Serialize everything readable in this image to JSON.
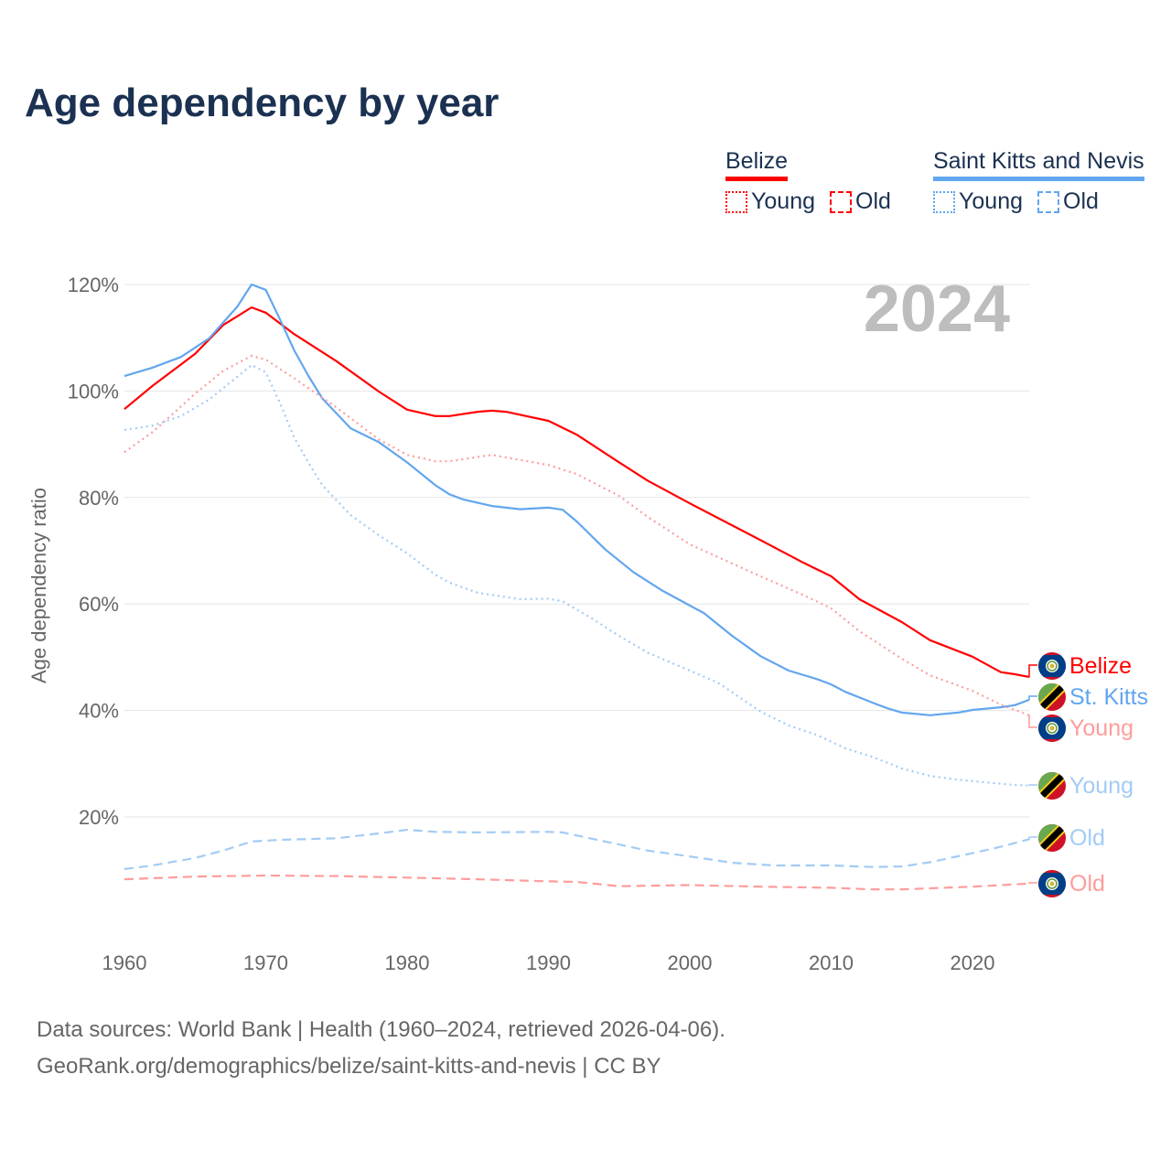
{
  "title": "Age dependency by year",
  "legend": {
    "groups": [
      {
        "name": "Belize",
        "color": "#ff0000",
        "items": [
          "Young",
          "Old"
        ]
      },
      {
        "name": "Saint Kitts and Nevis",
        "color": "#62a6ee",
        "items": [
          "Young",
          "Old"
        ]
      }
    ]
  },
  "source": {
    "line1": "Data sources: World Bank | Health (1960–2024, retrieved 2026-04-06).",
    "line2": "GeoRank.org/demographics/belize/saint-kitts-and-nevis | CC BY"
  },
  "chart_data": {
    "type": "line",
    "title": "Age dependency by year",
    "ylabel": "Age dependency ratio",
    "xlabel": "",
    "year_label": "2024",
    "xlim": [
      1960,
      2024
    ],
    "ylim": [
      0,
      125
    ],
    "xticks": [
      1960,
      1970,
      1980,
      1990,
      2000,
      2010,
      2020
    ],
    "yticks": [
      20,
      40,
      60,
      80,
      100,
      120
    ],
    "ytick_labels": [
      "20%",
      "40%",
      "60%",
      "80%",
      "100%",
      "120%"
    ],
    "grid": true,
    "series": [
      {
        "name": "Belize",
        "end_label": "Belize",
        "country": "belize",
        "style": "solid",
        "color": "#ff0000",
        "x": [
          1960,
          1962,
          1965,
          1967,
          1969,
          1970,
          1972,
          1975,
          1978,
          1980,
          1982,
          1983,
          1985,
          1986,
          1987,
          1990,
          1992,
          1995,
          1997,
          2000,
          2005,
          2008,
          2010,
          2012,
          2015,
          2017,
          2020,
          2022,
          2023,
          2024
        ],
        "y": [
          96.6,
          101,
          107,
          112.4,
          115.7,
          114.7,
          110.7,
          105.6,
          99.9,
          96.5,
          95.3,
          95.3,
          96.1,
          96.3,
          96.1,
          94.4,
          91.8,
          86.6,
          83.2,
          78.9,
          72,
          67.8,
          65.2,
          60.9,
          56.6,
          53.2,
          50.1,
          47.2,
          46.8,
          46.3
        ]
      },
      {
        "name": "Saint Kitts and Nevis",
        "end_label": "St. Kitts",
        "country": "skn",
        "style": "solid",
        "color": "#62a6ee",
        "x": [
          1960,
          1962,
          1964,
          1966,
          1968,
          1969,
          1970,
          1971,
          1972,
          1973,
          1974,
          1976,
          1978,
          1980,
          1982,
          1983,
          1984,
          1986,
          1988,
          1990,
          1991,
          1992,
          1994,
          1996,
          1998,
          2000,
          2001,
          2003,
          2005,
          2007,
          2009,
          2010,
          2011,
          2013,
          2014,
          2015,
          2017,
          2019,
          2020,
          2022,
          2023,
          2024
        ],
        "y": [
          102.8,
          104.4,
          106.4,
          109.9,
          115.9,
          120,
          119,
          113.5,
          107.7,
          102.9,
          98.6,
          93,
          90.4,
          86.6,
          82.3,
          80.6,
          79.6,
          78.4,
          77.8,
          78.1,
          77.7,
          75.5,
          70.3,
          66,
          62.6,
          59.7,
          58.3,
          54,
          50.2,
          47.5,
          45.9,
          44.9,
          43.5,
          41.4,
          40.4,
          39.6,
          39.1,
          39.6,
          40.1,
          40.6,
          41,
          42
        ]
      },
      {
        "name": "Belize Young",
        "end_label": "Young",
        "country": "belize",
        "style": "dotted",
        "color": "#ff9c9c",
        "x": [
          1960,
          1962,
          1965,
          1967,
          1969,
          1970,
          1972,
          1975,
          1978,
          1980,
          1982,
          1983,
          1986,
          1990,
          1992,
          1995,
          1997,
          2000,
          2005,
          2008,
          2010,
          2012,
          2015,
          2017,
          2020,
          2022,
          2024
        ],
        "y": [
          88.5,
          92.3,
          99.5,
          103.8,
          106.6,
          105.9,
          102.4,
          96.9,
          90.9,
          88,
          86.8,
          86.8,
          88,
          86.1,
          84.4,
          80.3,
          76.4,
          71.2,
          65.2,
          61.7,
          59.2,
          54.9,
          49.7,
          46.6,
          43.7,
          41.1,
          39.1
        ]
      },
      {
        "name": "Saint Kitts and Nevis Young",
        "end_label": "Young",
        "country": "skn",
        "style": "dotted",
        "color": "#a3cbf4",
        "x": [
          1960,
          1962,
          1964,
          1966,
          1968,
          1969,
          1970,
          1971,
          1972,
          1973,
          1974,
          1976,
          1978,
          1980,
          1982,
          1983,
          1985,
          1988,
          1990,
          1991,
          1993,
          1995,
          1997,
          2000,
          2002,
          2005,
          2007,
          2009,
          2011,
          2013,
          2015,
          2017,
          2019,
          2021,
          2023,
          2024
        ],
        "y": [
          92.7,
          93.5,
          95.3,
          98.4,
          102.7,
          104.9,
          103.5,
          97.8,
          91.3,
          86.6,
          82.3,
          76.7,
          72.9,
          69.5,
          65.5,
          64,
          62.1,
          60.9,
          61,
          60.5,
          57.4,
          54,
          50.9,
          47.5,
          45.2,
          39.8,
          37.2,
          35.4,
          32.9,
          31.2,
          29.1,
          27.7,
          27,
          26.5,
          26,
          25.9
        ]
      },
      {
        "name": "Saint Kitts and Nevis Old",
        "end_label": "Old",
        "country": "skn",
        "style": "dashed",
        "color": "#a3cbf4",
        "x": [
          1960,
          1962,
          1965,
          1967,
          1969,
          1971,
          1975,
          1978,
          1980,
          1982,
          1985,
          1990,
          1991,
          1994,
          1997,
          2000,
          2003,
          2006,
          2010,
          2013,
          2015,
          2017,
          2020,
          2022,
          2024
        ],
        "y": [
          10.2,
          10.9,
          12.3,
          13.7,
          15.4,
          15.7,
          16,
          16.9,
          17.6,
          17.2,
          17.1,
          17.2,
          17.1,
          15.4,
          13.7,
          12.6,
          11.4,
          10.9,
          10.9,
          10.6,
          10.7,
          11.5,
          13.2,
          14.4,
          15.8
        ]
      },
      {
        "name": "Belize Old",
        "end_label": "Old",
        "country": "belize",
        "style": "dashed",
        "color": "#ff9c9c",
        "x": [
          1960,
          1965,
          1970,
          1975,
          1980,
          1985,
          1990,
          1992,
          1995,
          2000,
          2005,
          2010,
          2013,
          2015,
          2020,
          2024
        ],
        "y": [
          8.3,
          8.8,
          9.0,
          8.9,
          8.6,
          8.3,
          7.9,
          7.8,
          7.0,
          7.2,
          6.9,
          6.7,
          6.4,
          6.4,
          6.9,
          7.5
        ]
      }
    ]
  }
}
